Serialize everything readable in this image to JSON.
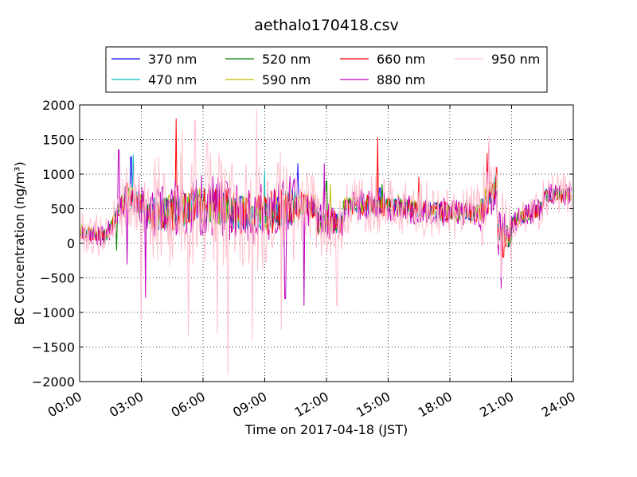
{
  "chart_data": {
    "type": "line",
    "title": "aethalo170418.csv",
    "xlabel": "Time on 2017-04-18 (JST)",
    "ylabel": "BC Concentration (ng/m³)",
    "xlim": [
      0,
      24
    ],
    "ylim": [
      -2000,
      2000
    ],
    "x_ticks": [
      0,
      3,
      6,
      9,
      12,
      15,
      18,
      21,
      24
    ],
    "x_tick_labels": [
      "00:00",
      "03:00",
      "06:00",
      "09:00",
      "12:00",
      "15:00",
      "18:00",
      "21:00",
      "24:00"
    ],
    "y_ticks": [
      -2000,
      -1500,
      -1000,
      -500,
      0,
      500,
      1000,
      1500,
      2000
    ],
    "y_tick_labels": [
      "−2000",
      "−1500",
      "−1000",
      "−500",
      "0",
      "500",
      "1000",
      "1500",
      "2000"
    ],
    "grid": true,
    "legend_position": "top",
    "series": [
      {
        "name": "370 nm",
        "color": "#0000ff",
        "noise": 150,
        "seed": 11,
        "spikes": [
          [
            10.6,
            1150
          ],
          [
            2.5,
            1250
          ],
          [
            14.6,
            800
          ],
          [
            19.8,
            1000
          ]
        ]
      },
      {
        "name": "470 nm",
        "color": "#00bfbf",
        "noise": 160,
        "seed": 23,
        "spikes": [
          [
            2.6,
            1280
          ],
          [
            9.0,
            1050
          ],
          [
            6.1,
            780
          ],
          [
            19.8,
            1050
          ]
        ]
      },
      {
        "name": "520 nm",
        "color": "#008000",
        "noise": 160,
        "seed": 37,
        "spikes": [
          [
            1.8,
            -100
          ],
          [
            12.0,
            900
          ],
          [
            14.7,
            850
          ],
          [
            19.8,
            1000
          ]
        ]
      },
      {
        "name": "590 nm",
        "color": "#bfbf00",
        "noise": 170,
        "seed": 41,
        "spikes": [
          [
            12.2,
            850
          ],
          [
            15.5,
            700
          ],
          [
            19.8,
            1100
          ]
        ]
      },
      {
        "name": "660 nm",
        "color": "#ff0000",
        "noise": 200,
        "seed": 53,
        "spikes": [
          [
            4.7,
            1800
          ],
          [
            14.5,
            1530
          ],
          [
            16.5,
            950
          ],
          [
            20.6,
            -200
          ],
          [
            19.8,
            1300
          ]
        ]
      },
      {
        "name": "880 nm",
        "color": "#bf00bf",
        "noise": 280,
        "seed": 67,
        "spikes": [
          [
            1.9,
            1350
          ],
          [
            2.3,
            -300
          ],
          [
            3.2,
            -780
          ],
          [
            10.0,
            -800
          ],
          [
            10.9,
            -900
          ],
          [
            20.5,
            -650
          ],
          [
            11.9,
            1150
          ],
          [
            19.9,
            1500
          ]
        ]
      },
      {
        "name": "950 nm",
        "color": "#ffc0cb",
        "noise": 520,
        "seed": 79,
        "spikes": [
          [
            5.0,
            1620
          ],
          [
            5.6,
            1770
          ],
          [
            6.2,
            1450
          ],
          [
            8.6,
            1940
          ],
          [
            7.2,
            -1900
          ],
          [
            8.4,
            -1400
          ],
          [
            5.3,
            -1350
          ],
          [
            3.0,
            -1100
          ],
          [
            6.7,
            -1300
          ],
          [
            9.8,
            -1250
          ],
          [
            12.5,
            -900
          ],
          [
            19.9,
            1550
          ],
          [
            20.5,
            -500
          ]
        ]
      }
    ]
  }
}
